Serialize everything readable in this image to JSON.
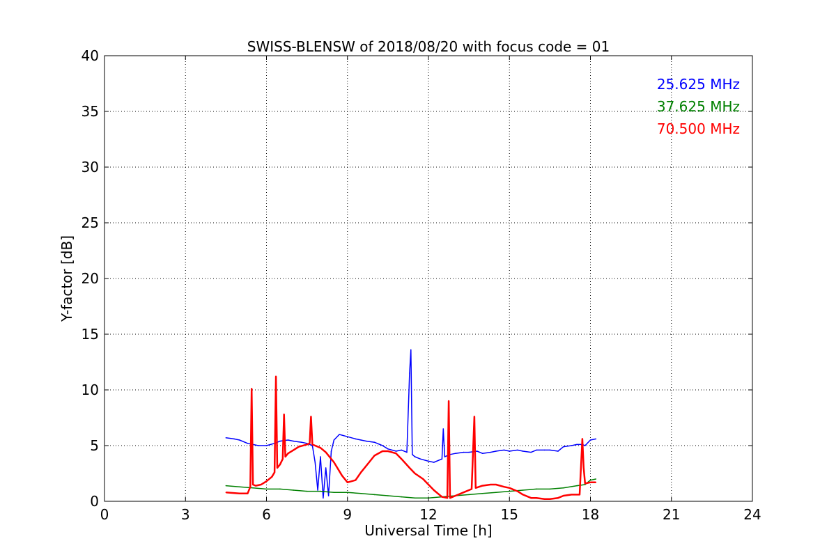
{
  "chart_data": {
    "type": "line",
    "title": "SWISS-BLENSW of 2018/08/20 with focus code = 01",
    "xlabel": "Universal Time [h]",
    "ylabel": "Y-factor [dB]",
    "xlim": [
      0,
      24
    ],
    "ylim": [
      0,
      40
    ],
    "xticks": [
      "0",
      "3",
      "6",
      "9",
      "12",
      "15",
      "18",
      "21",
      "24"
    ],
    "yticks": [
      "0",
      "5",
      "10",
      "15",
      "20",
      "25",
      "30",
      "35",
      "40"
    ],
    "grid": true,
    "legend_position": "top-right",
    "series": [
      {
        "name": "25.625 MHz",
        "color": "#0000ff",
        "x": [
          4.5,
          4.8,
          5.0,
          5.3,
          5.5,
          5.7,
          6.0,
          6.3,
          6.5,
          6.8,
          7.0,
          7.3,
          7.5,
          7.7,
          7.8,
          7.9,
          8.0,
          8.1,
          8.2,
          8.3,
          8.4,
          8.5,
          8.7,
          9.0,
          9.3,
          9.5,
          9.7,
          10.0,
          10.3,
          10.5,
          10.8,
          11.0,
          11.2,
          11.3,
          11.35,
          11.4,
          11.5,
          11.7,
          12.0,
          12.2,
          12.5,
          12.55,
          12.6,
          12.8,
          13.0,
          13.3,
          13.5,
          13.8,
          14.0,
          14.3,
          14.5,
          14.8,
          15.0,
          15.3,
          15.5,
          15.8,
          16.0,
          16.3,
          16.5,
          16.8,
          17.0,
          17.3,
          17.5,
          17.7,
          17.8,
          18.0,
          18.2
        ],
        "y": [
          5.7,
          5.6,
          5.5,
          5.2,
          5.1,
          5.0,
          5.0,
          5.2,
          5.4,
          5.5,
          5.4,
          5.3,
          5.2,
          5.0,
          3.5,
          1.0,
          4.0,
          0.3,
          3.0,
          0.5,
          4.5,
          5.5,
          6.0,
          5.8,
          5.6,
          5.5,
          5.4,
          5.3,
          5.0,
          4.7,
          4.5,
          4.6,
          4.4,
          11.5,
          13.6,
          4.2,
          4.0,
          3.8,
          3.6,
          3.5,
          3.8,
          6.5,
          4.0,
          4.2,
          4.3,
          4.4,
          4.4,
          4.5,
          4.3,
          4.4,
          4.5,
          4.6,
          4.5,
          4.6,
          4.5,
          4.4,
          4.6,
          4.6,
          4.6,
          4.5,
          4.9,
          5.0,
          5.1,
          5.1,
          5.0,
          5.5,
          5.6
        ]
      },
      {
        "name": "37.625 MHz",
        "color": "#008000",
        "x": [
          4.5,
          5.0,
          5.5,
          6.0,
          6.5,
          7.0,
          7.5,
          8.0,
          8.5,
          9.0,
          9.5,
          10.0,
          10.5,
          11.0,
          11.5,
          12.0,
          12.5,
          13.0,
          13.5,
          14.0,
          14.5,
          15.0,
          15.5,
          16.0,
          16.5,
          17.0,
          17.5,
          17.8,
          18.0,
          18.2
        ],
        "y": [
          1.4,
          1.3,
          1.2,
          1.1,
          1.1,
          1.0,
          0.9,
          0.9,
          0.8,
          0.8,
          0.7,
          0.6,
          0.5,
          0.4,
          0.3,
          0.3,
          0.4,
          0.5,
          0.6,
          0.7,
          0.8,
          0.9,
          1.0,
          1.1,
          1.1,
          1.2,
          1.4,
          1.5,
          1.9,
          2.0
        ]
      },
      {
        "name": "70.500 MHz",
        "color": "#ff0000",
        "x": [
          4.5,
          5.0,
          5.3,
          5.4,
          5.45,
          5.5,
          5.6,
          5.8,
          6.0,
          6.2,
          6.3,
          6.35,
          6.4,
          6.5,
          6.6,
          6.65,
          6.7,
          6.8,
          7.0,
          7.2,
          7.5,
          7.6,
          7.65,
          7.7,
          7.8,
          8.0,
          8.2,
          8.5,
          8.8,
          9.0,
          9.3,
          9.5,
          9.8,
          10.0,
          10.3,
          10.5,
          10.8,
          11.0,
          11.3,
          11.5,
          11.8,
          12.0,
          12.2,
          12.4,
          12.5,
          12.7,
          12.75,
          12.8,
          13.0,
          13.3,
          13.6,
          13.7,
          13.75,
          14.0,
          14.3,
          14.5,
          14.8,
          15.0,
          15.3,
          15.5,
          15.8,
          16.0,
          16.3,
          16.5,
          16.8,
          17.0,
          17.3,
          17.6,
          17.7,
          17.75,
          17.8,
          18.0,
          18.2
        ],
        "y": [
          0.8,
          0.7,
          0.7,
          1.3,
          10.1,
          1.5,
          1.4,
          1.5,
          1.8,
          2.2,
          2.6,
          11.2,
          3.0,
          3.3,
          3.8,
          7.8,
          4.0,
          4.3,
          4.6,
          4.9,
          5.1,
          5.2,
          7.6,
          5.1,
          5.0,
          4.8,
          4.4,
          3.5,
          2.3,
          1.7,
          1.9,
          2.6,
          3.5,
          4.1,
          4.5,
          4.5,
          4.3,
          3.8,
          3.0,
          2.5,
          2.0,
          1.5,
          1.0,
          0.6,
          0.4,
          0.3,
          9.0,
          0.3,
          0.5,
          0.8,
          1.1,
          7.6,
          1.2,
          1.4,
          1.5,
          1.5,
          1.3,
          1.2,
          0.9,
          0.6,
          0.3,
          0.3,
          0.2,
          0.2,
          0.3,
          0.5,
          0.6,
          0.6,
          5.6,
          3.0,
          1.6,
          1.7,
          1.7
        ]
      }
    ]
  }
}
